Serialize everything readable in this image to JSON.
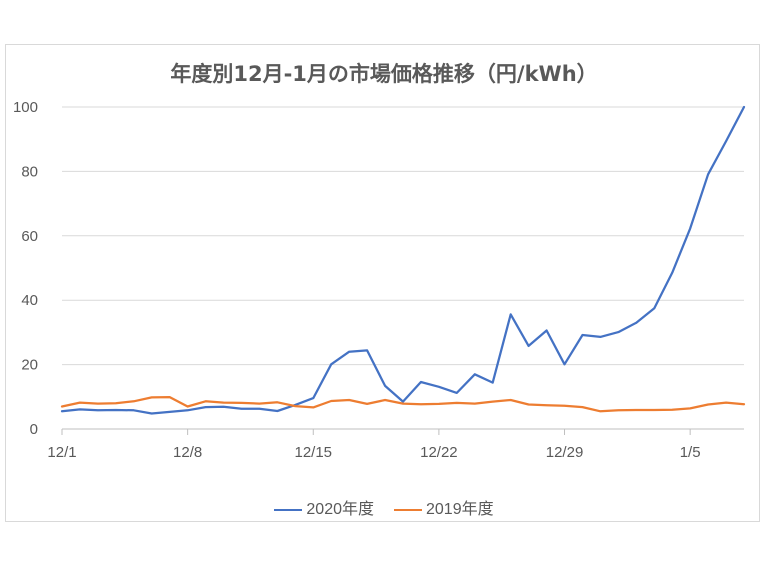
{
  "chart_data": {
    "type": "line",
    "title": "年度別12月-1月の市場価格推移（円/kWh）",
    "xlabel": "",
    "ylabel": "",
    "ylim": [
      0,
      100
    ],
    "yticks": [
      0,
      20,
      40,
      60,
      80,
      100
    ],
    "xtick_labels": [
      "12/1",
      "12/8",
      "12/15",
      "12/22",
      "12/29",
      "1/5"
    ],
    "xtick_positions": [
      1,
      8,
      15,
      22,
      29,
      36
    ],
    "grid": true,
    "legend_position": "bottom",
    "x": [
      1,
      2,
      3,
      4,
      5,
      6,
      7,
      8,
      9,
      10,
      11,
      12,
      13,
      14,
      15,
      16,
      17,
      18,
      19,
      20,
      21,
      22,
      23,
      24,
      25,
      26,
      27,
      28,
      29,
      30,
      31,
      32,
      33,
      34,
      35,
      36,
      37,
      38,
      39
    ],
    "series": [
      {
        "name": "2020年度",
        "color": "#4472c4",
        "values": [
          5.5,
          6.1,
          5.8,
          5.9,
          5.8,
          4.8,
          5.3,
          5.8,
          6.8,
          6.9,
          6.3,
          6.3,
          5.6,
          7.5,
          9.6,
          20.1,
          24.0,
          24.4,
          13.4,
          8.5,
          14.6,
          13.1,
          11.2,
          17.0,
          14.4,
          35.6,
          25.8,
          30.6,
          20.1,
          29.2,
          28.6,
          30.1,
          33.0,
          37.5,
          48.5,
          62.3,
          79.1,
          89.4,
          100.0
        ]
      },
      {
        "name": "2019年度",
        "color": "#ed7d31",
        "values": [
          7.0,
          8.2,
          7.9,
          8.0,
          8.6,
          9.8,
          9.9,
          7.0,
          8.6,
          8.2,
          8.1,
          7.9,
          8.3,
          7.1,
          6.7,
          8.7,
          9.0,
          7.8,
          9.0,
          7.9,
          7.7,
          7.8,
          8.1,
          7.9,
          8.5,
          9.0,
          7.6,
          7.4,
          7.2,
          6.8,
          5.5,
          5.8,
          5.9,
          5.9,
          6.0,
          6.4,
          7.6,
          8.2,
          7.7
        ]
      }
    ]
  }
}
